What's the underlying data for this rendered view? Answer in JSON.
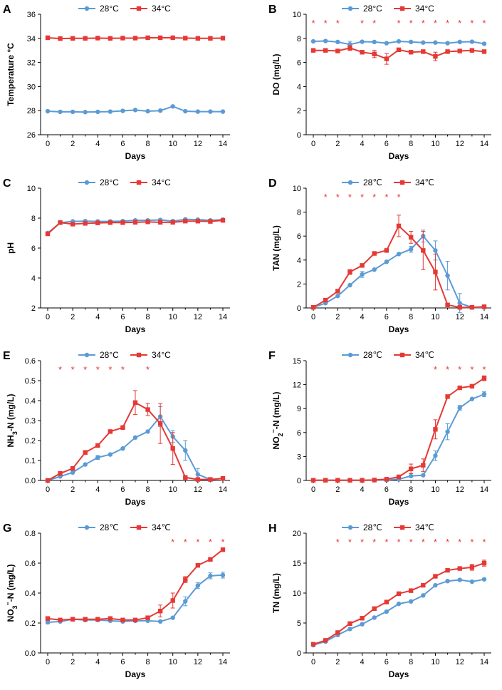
{
  "colors": {
    "c28": "#5b9bd5",
    "c34": "#e53935"
  },
  "chart_data": [
    {
      "panel": "A",
      "type": "line",
      "xlabel": "Days",
      "ylabel": "Temperature °C",
      "ylim": [
        26,
        36
      ],
      "yticks": [
        26,
        28,
        30,
        32,
        34,
        36
      ],
      "ydec": 0,
      "legend": [
        "28°C",
        "34°C"
      ],
      "x": [
        0,
        1,
        2,
        3,
        4,
        5,
        6,
        7,
        8,
        9,
        10,
        11,
        12,
        13,
        14
      ],
      "series": [
        {
          "name": "28°C",
          "values": [
            27.95,
            27.9,
            27.9,
            27.88,
            27.9,
            27.92,
            27.98,
            28.05,
            27.95,
            28.0,
            28.35,
            27.95,
            27.92,
            27.92,
            27.92
          ],
          "err": [
            0,
            0,
            0,
            0,
            0,
            0,
            0,
            0,
            0,
            0,
            0,
            0,
            0,
            0,
            0
          ]
        },
        {
          "name": "34°C",
          "values": [
            34.05,
            33.98,
            34.0,
            34.0,
            34.02,
            34.0,
            34.02,
            34.02,
            34.05,
            34.05,
            34.05,
            34.02,
            34.0,
            34.0,
            34.02
          ],
          "err": [
            0,
            0,
            0,
            0,
            0,
            0,
            0,
            0,
            0,
            0,
            0,
            0,
            0,
            0,
            0
          ]
        }
      ],
      "stars": [],
      "star_labels": []
    },
    {
      "panel": "B",
      "type": "line",
      "xlabel": "Days",
      "ylabel": "DO (mg/L)",
      "ylim": [
        0,
        10
      ],
      "yticks": [
        0,
        2,
        4,
        6,
        8,
        10
      ],
      "ydec": 0,
      "legend": [
        "28°C",
        "34°C"
      ],
      "x": [
        0,
        1,
        2,
        3,
        4,
        5,
        6,
        7,
        8,
        9,
        10,
        11,
        12,
        13,
        14
      ],
      "series": [
        {
          "name": "28°C",
          "values": [
            7.75,
            7.78,
            7.7,
            7.5,
            7.72,
            7.7,
            7.6,
            7.75,
            7.7,
            7.65,
            7.65,
            7.6,
            7.7,
            7.72,
            7.55
          ],
          "err": [
            0,
            0,
            0,
            0.25,
            0,
            0,
            0,
            0,
            0,
            0,
            0,
            0,
            0,
            0,
            0
          ]
        },
        {
          "name": "34°C",
          "values": [
            7.0,
            7.0,
            6.95,
            7.2,
            6.85,
            6.7,
            6.3,
            7.05,
            6.85,
            6.9,
            6.5,
            6.9,
            6.95,
            7.0,
            6.9
          ],
          "err": [
            0,
            0,
            0,
            0.2,
            0,
            0.3,
            0.45,
            0,
            0,
            0,
            0.35,
            0,
            0,
            0,
            0
          ]
        }
      ],
      "stars": [
        0,
        1,
        2,
        4,
        5,
        7,
        8,
        9,
        10,
        11,
        12,
        13,
        14
      ],
      "star_labels": [
        "*",
        "*",
        "*",
        "*",
        "*",
        "*",
        "*",
        "*",
        "*",
        "*",
        "*",
        "*",
        "*"
      ]
    },
    {
      "panel": "C",
      "type": "line",
      "xlabel": "Days",
      "ylabel": "pH",
      "ylim": [
        2,
        10
      ],
      "yticks": [
        2,
        4,
        6,
        8,
        10
      ],
      "ydec": 0,
      "legend": [
        "28°C",
        "34°C"
      ],
      "x": [
        0,
        1,
        2,
        3,
        4,
        5,
        6,
        7,
        8,
        9,
        10,
        11,
        12,
        13,
        14
      ],
      "series": [
        {
          "name": "28°C",
          "values": [
            7.0,
            7.7,
            7.78,
            7.8,
            7.78,
            7.78,
            7.8,
            7.85,
            7.85,
            7.88,
            7.8,
            7.92,
            7.9,
            7.85,
            7.9
          ],
          "err": [
            0,
            0,
            0,
            0,
            0,
            0,
            0,
            0,
            0,
            0,
            0,
            0,
            0,
            0,
            0
          ]
        },
        {
          "name": "34°C",
          "values": [
            6.95,
            7.7,
            7.6,
            7.65,
            7.68,
            7.7,
            7.7,
            7.72,
            7.75,
            7.72,
            7.72,
            7.8,
            7.8,
            7.78,
            7.85
          ],
          "err": [
            0,
            0,
            0,
            0,
            0,
            0,
            0,
            0,
            0,
            0,
            0,
            0,
            0,
            0,
            0
          ]
        }
      ],
      "stars": [],
      "star_labels": []
    },
    {
      "panel": "D",
      "type": "line",
      "xlabel": "Days",
      "ylabel": "TAN (mg/L)",
      "ylim": [
        0,
        10
      ],
      "yticks": [
        0,
        2,
        4,
        6,
        8,
        10
      ],
      "ydec": 0,
      "legend": [
        "28℃",
        "34℃"
      ],
      "x": [
        0,
        1,
        2,
        3,
        4,
        5,
        6,
        7,
        8,
        9,
        10,
        11,
        12,
        13,
        14
      ],
      "series": [
        {
          "name": "28℃",
          "values": [
            0.05,
            0.4,
            1.0,
            1.9,
            2.8,
            3.2,
            3.85,
            4.5,
            4.9,
            6.0,
            4.8,
            2.7,
            0.4,
            0.05,
            0.05
          ],
          "err": [
            0,
            0,
            0,
            0,
            0.25,
            0,
            0,
            0,
            0.25,
            0.5,
            0.8,
            1.2,
            0.8,
            0,
            0
          ]
        },
        {
          "name": "34℃",
          "values": [
            0.05,
            0.65,
            1.4,
            3.0,
            3.55,
            4.55,
            4.8,
            6.85,
            5.9,
            4.8,
            3.0,
            0.25,
            0.05,
            0.05,
            0.1
          ],
          "err": [
            0,
            0,
            0,
            0.2,
            0,
            0,
            0,
            0.9,
            0.5,
            1.6,
            1.5,
            0,
            0,
            0,
            0
          ]
        }
      ],
      "stars": [
        1,
        2,
        3,
        4,
        5,
        6,
        7
      ],
      "star_labels": [
        "*",
        "*",
        "*",
        "*",
        "*",
        "*",
        "*"
      ]
    },
    {
      "panel": "E",
      "type": "line",
      "xlabel": "Days",
      "ylabel": "NH3-N (mg/L)",
      "ylim": [
        0,
        0.6
      ],
      "yticks": [
        0,
        0.1,
        0.2,
        0.3,
        0.4,
        0.5,
        0.6
      ],
      "ydec": 1,
      "legend": [
        "28°C",
        "34°C"
      ],
      "x": [
        0,
        1,
        2,
        3,
        4,
        5,
        6,
        7,
        8,
        9,
        10,
        11,
        12,
        13,
        14
      ],
      "series": [
        {
          "name": "28°C",
          "values": [
            0.0,
            0.02,
            0.04,
            0.08,
            0.115,
            0.13,
            0.16,
            0.215,
            0.245,
            0.32,
            0.22,
            0.15,
            0.03,
            0.005,
            0.01
          ],
          "err": [
            0,
            0,
            0,
            0,
            0.01,
            0,
            0,
            0,
            0,
            0.05,
            0.03,
            0.05,
            0.03,
            0,
            0
          ]
        },
        {
          "name": "34°C",
          "values": [
            0.0,
            0.035,
            0.06,
            0.14,
            0.175,
            0.245,
            0.265,
            0.39,
            0.355,
            0.285,
            0.16,
            0.015,
            0.005,
            0.005,
            0.01
          ],
          "err": [
            0,
            0,
            0,
            0.01,
            0,
            0,
            0,
            0.06,
            0.03,
            0.1,
            0.08,
            0,
            0,
            0,
            0
          ]
        }
      ],
      "stars": [
        1,
        2,
        3,
        4,
        5,
        6,
        8
      ],
      "star_labels": [
        "*",
        "*",
        "*",
        "*",
        "*",
        "*",
        "*"
      ]
    },
    {
      "panel": "F",
      "type": "line",
      "xlabel": "Days",
      "ylabel": "NO2−-N (mg/L)",
      "ylim": [
        0,
        15
      ],
      "yticks": [
        0,
        3,
        6,
        9,
        12,
        15
      ],
      "ydec": 0,
      "legend": [
        "28℃",
        "34℃"
      ],
      "x": [
        0,
        1,
        2,
        3,
        4,
        5,
        6,
        7,
        8,
        9,
        10,
        11,
        12,
        13,
        14
      ],
      "series": [
        {
          "name": "28℃",
          "values": [
            0.02,
            0.02,
            0.02,
            0.02,
            0.02,
            0.02,
            0.05,
            0.15,
            0.55,
            0.65,
            3.1,
            6.1,
            9.1,
            10.2,
            10.8
          ],
          "err": [
            0,
            0,
            0,
            0,
            0,
            0,
            0,
            0,
            0,
            0,
            0.6,
            1.0,
            0.3,
            0,
            0.3
          ]
        },
        {
          "name": "34℃",
          "values": [
            0.02,
            0.02,
            0.02,
            0.02,
            0.02,
            0.05,
            0.15,
            0.45,
            1.45,
            1.9,
            6.4,
            10.5,
            11.6,
            11.8,
            12.8
          ],
          "err": [
            0,
            0,
            0,
            0,
            0,
            0,
            0,
            0,
            0.6,
            0.8,
            1.2,
            0,
            0,
            0,
            0.3
          ]
        }
      ],
      "stars": [
        10,
        11,
        12,
        13,
        14
      ],
      "star_labels": [
        "*",
        "*",
        "*",
        "*",
        "*"
      ]
    },
    {
      "panel": "G",
      "type": "line",
      "xlabel": "Days",
      "ylabel": "NO3−-N (mg/L)",
      "ylim": [
        0,
        0.8
      ],
      "yticks": [
        0,
        0.2,
        0.4,
        0.6,
        0.8
      ],
      "ydec": 1,
      "legend": [
        "28℃",
        "34℃"
      ],
      "x": [
        0,
        1,
        2,
        3,
        4,
        5,
        6,
        7,
        8,
        9,
        10,
        11,
        12,
        13,
        14
      ],
      "series": [
        {
          "name": "28℃",
          "values": [
            0.205,
            0.21,
            0.225,
            0.22,
            0.22,
            0.215,
            0.21,
            0.215,
            0.215,
            0.21,
            0.235,
            0.345,
            0.45,
            0.515,
            0.52
          ],
          "err": [
            0.01,
            0,
            0,
            0,
            0,
            0,
            0,
            0,
            0,
            0,
            0,
            0.03,
            0.02,
            0.02,
            0.02
          ]
        },
        {
          "name": "34℃",
          "values": [
            0.23,
            0.22,
            0.225,
            0.225,
            0.225,
            0.23,
            0.22,
            0.22,
            0.235,
            0.28,
            0.35,
            0.49,
            0.585,
            0.625,
            0.69
          ],
          "err": [
            0.01,
            0,
            0,
            0,
            0,
            0,
            0,
            0,
            0,
            0.04,
            0.05,
            0.02,
            0,
            0,
            0.01
          ]
        }
      ],
      "stars": [
        10,
        11,
        12,
        13,
        14
      ],
      "star_labels": [
        "*",
        "*",
        "*",
        "*",
        "*"
      ]
    },
    {
      "panel": "H",
      "type": "line",
      "xlabel": "Days",
      "ylabel": "TN (mg/L)",
      "ylim": [
        0,
        20
      ],
      "yticks": [
        0,
        5,
        10,
        15,
        20
      ],
      "ydec": 0,
      "legend": [
        "28℃",
        "34℃"
      ],
      "x": [
        0,
        1,
        2,
        3,
        4,
        5,
        6,
        7,
        8,
        9,
        10,
        11,
        12,
        13,
        14
      ],
      "series": [
        {
          "name": "28℃",
          "values": [
            1.3,
            1.9,
            3.0,
            4.0,
            4.8,
            5.9,
            6.9,
            8.2,
            8.6,
            9.6,
            11.3,
            12.0,
            12.2,
            11.9,
            12.3
          ],
          "err": [
            0,
            0,
            0,
            0,
            0,
            0,
            0,
            0,
            0,
            0,
            0,
            0,
            0,
            0,
            0
          ]
        },
        {
          "name": "34℃",
          "values": [
            1.45,
            2.1,
            3.4,
            4.9,
            5.8,
            7.4,
            8.5,
            9.9,
            10.4,
            11.3,
            12.8,
            13.8,
            14.1,
            14.3,
            15.0
          ],
          "err": [
            0,
            0,
            0,
            0,
            0,
            0,
            0,
            0,
            0,
            0,
            0,
            0,
            0,
            0.5,
            0.5
          ]
        }
      ],
      "stars": [
        2,
        3,
        4,
        5,
        6,
        7,
        8,
        9,
        10,
        11,
        12,
        13,
        14
      ],
      "star_labels": [
        "*",
        "*",
        "*",
        "*",
        "*",
        "*",
        "*",
        "*",
        "*",
        "*",
        "*",
        "*",
        "*"
      ]
    }
  ]
}
